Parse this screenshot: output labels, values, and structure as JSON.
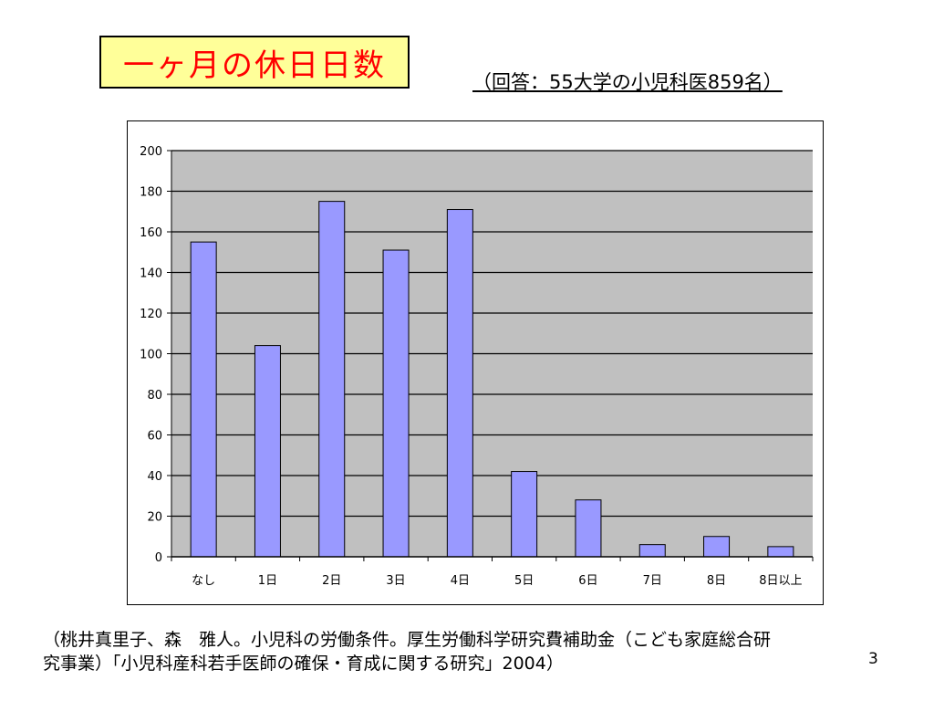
{
  "slide": {
    "title": "一ヶ月の休日日数",
    "subtitle": "（回答：55大学の小児科医859名）",
    "footnote_line1": "（桃井真里子、森　雅人。小児科の労働条件。厚生労働科学研究費補助金（こども家庭総合研",
    "footnote_line2": "究事業）「小児科産科若手医師の確保・育成に関する研究」2004）",
    "page_number": "3",
    "title_color": "#ff0000",
    "title_bg": "#ffff99"
  },
  "chart_data": {
    "type": "bar",
    "categories": [
      "なし",
      "1日",
      "2日",
      "3日",
      "4日",
      "5日",
      "6日",
      "7日",
      "8日",
      "8日以上"
    ],
    "values": [
      155,
      104,
      175,
      151,
      171,
      42,
      28,
      6,
      10,
      5
    ],
    "title": "",
    "xlabel": "",
    "ylabel": "",
    "ylim": [
      0,
      200
    ],
    "yticks": [
      0,
      20,
      40,
      60,
      80,
      100,
      120,
      140,
      160,
      180,
      200
    ],
    "grid": true,
    "legend": "none",
    "bar_color": "#9999ff",
    "plot_bg": "#c0c0c0"
  }
}
